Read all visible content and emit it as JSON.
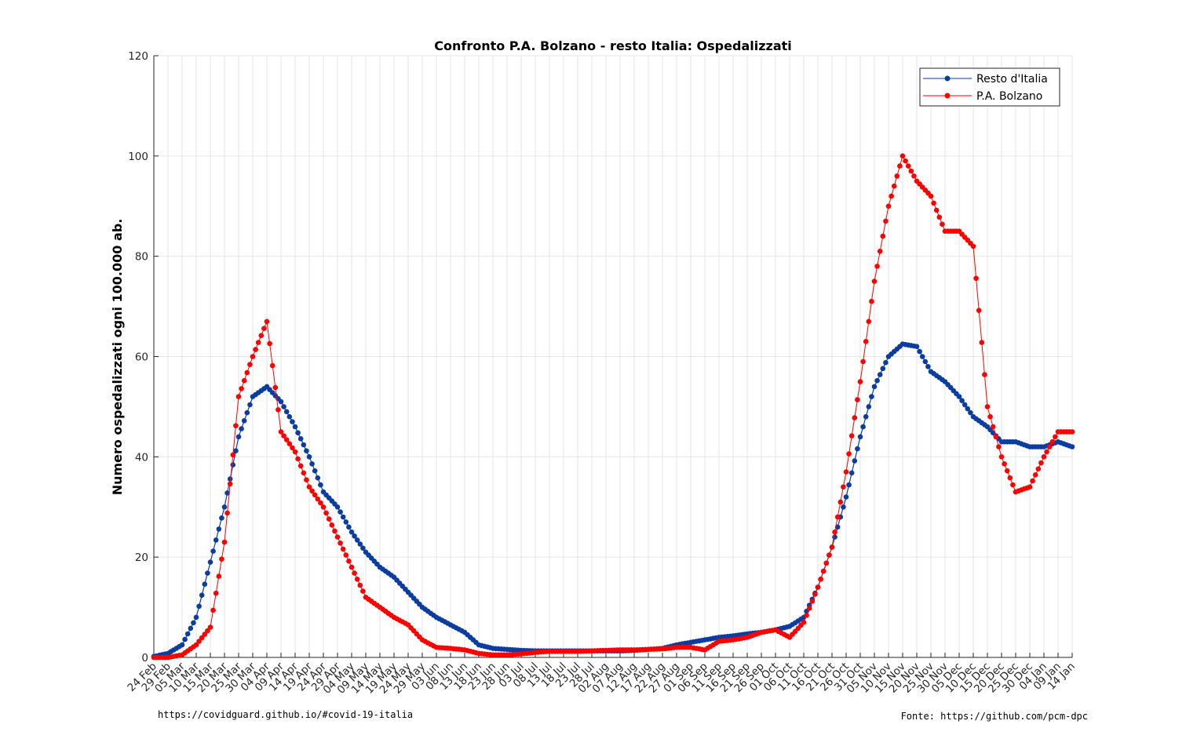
{
  "chart_data": {
    "type": "line",
    "title": "Confronto P.A. Bolzano - resto Italia: Ospedalizzati",
    "xlabel": "",
    "ylabel": "Numero ospedalizzati ogni 100.000 ab.",
    "ylim": [
      0,
      120
    ],
    "yticks": [
      0,
      20,
      40,
      60,
      80,
      100,
      120
    ],
    "xlim": [
      "2020-02-24",
      "2021-01-14"
    ],
    "grid": true,
    "legend_position": "top-right",
    "x": [
      "2020-02-24",
      "2020-02-29",
      "2020-03-05",
      "2020-03-10",
      "2020-03-15",
      "2020-03-20",
      "2020-03-25",
      "2020-03-30",
      "2020-04-04",
      "2020-04-09",
      "2020-04-14",
      "2020-04-19",
      "2020-04-24",
      "2020-04-29",
      "2020-05-04",
      "2020-05-09",
      "2020-05-14",
      "2020-05-19",
      "2020-05-24",
      "2020-05-29",
      "2020-06-03",
      "2020-06-08",
      "2020-06-13",
      "2020-06-18",
      "2020-06-23",
      "2020-06-28",
      "2020-07-03",
      "2020-07-08",
      "2020-07-13",
      "2020-07-18",
      "2020-07-23",
      "2020-07-28",
      "2020-08-02",
      "2020-08-07",
      "2020-08-12",
      "2020-08-17",
      "2020-08-22",
      "2020-08-27",
      "2020-09-01",
      "2020-09-06",
      "2020-09-11",
      "2020-09-16",
      "2020-09-21",
      "2020-09-26",
      "2020-10-01",
      "2020-10-06",
      "2020-10-11",
      "2020-10-16",
      "2020-10-21",
      "2020-10-26",
      "2020-10-31",
      "2020-11-05",
      "2020-11-10",
      "2020-11-15",
      "2020-11-20",
      "2020-11-25",
      "2020-11-30",
      "2020-12-05",
      "2020-12-10",
      "2020-12-15",
      "2020-12-20",
      "2020-12-25",
      "2020-12-30",
      "2021-01-04",
      "2021-01-09",
      "2021-01-14"
    ],
    "xtick_labels": [
      "24 Feb",
      "29 Feb",
      "05 Mar",
      "10 Mar",
      "15 Mar",
      "20 Mar",
      "25 Mar",
      "30 Mar",
      "04 Apr",
      "09 Apr",
      "14 Apr",
      "19 Apr",
      "24 Apr",
      "29 Apr",
      "04 May",
      "09 May",
      "14 May",
      "19 May",
      "24 May",
      "29 May",
      "03 Jun",
      "08 Jun",
      "13 Jun",
      "18 Jun",
      "23 Jun",
      "28 Jun",
      "03 Jul",
      "08 Jul",
      "13 Jul",
      "18 Jul",
      "23 Jul",
      "28 Jul",
      "02 Aug",
      "07 Aug",
      "12 Aug",
      "17 Aug",
      "22 Aug",
      "27 Aug",
      "01 Sep",
      "06 Sep",
      "11 Sep",
      "16 Sep",
      "21 Sep",
      "26 Sep",
      "01 Oct",
      "06 Oct",
      "11 Oct",
      "16 Oct",
      "21 Oct",
      "26 Oct",
      "31 Oct",
      "05 Nov",
      "10 Nov",
      "15 Nov",
      "20 Nov",
      "25 Nov",
      "30 Nov",
      "05 Dec",
      "10 Dec",
      "15 Dec",
      "20 Dec",
      "25 Dec",
      "30 Dec",
      "04 Jan",
      "09 Jan",
      "14 Jan"
    ],
    "series": [
      {
        "name": "Resto d'Italia",
        "color": "#0b3da1",
        "values": [
          0.2,
          0.8,
          2.5,
          8,
          19,
          30,
          44,
          52,
          54,
          51,
          46,
          40,
          33,
          30,
          25,
          21,
          18,
          16,
          13,
          10,
          8,
          6.5,
          5,
          2.5,
          1.8,
          1.6,
          1.4,
          1.3,
          1.3,
          1.3,
          1.3,
          1.3,
          1.3,
          1.3,
          1.4,
          1.6,
          1.8,
          2.5,
          3,
          3.5,
          4,
          4.3,
          4.7,
          5,
          5.5,
          6.2,
          8,
          14,
          22,
          32,
          44,
          54,
          60,
          62.5,
          62,
          57,
          55,
          52,
          48,
          46,
          43,
          43,
          42,
          42,
          43,
          42
        ]
      },
      {
        "name": "P.A. Bolzano",
        "color": "#ff0000",
        "values": [
          0,
          0,
          0.5,
          2.5,
          6,
          23,
          52,
          60,
          67,
          45,
          41,
          34,
          30,
          24,
          18,
          12,
          10,
          8,
          6.5,
          3.5,
          2,
          1.8,
          1.5,
          0.8,
          0.5,
          0.5,
          0.7,
          1,
          1.2,
          1.2,
          1.2,
          1.3,
          1.4,
          1.5,
          1.5,
          1.6,
          1.7,
          2,
          2,
          1.5,
          3.2,
          3.5,
          4,
          5,
          5.5,
          4,
          7,
          14,
          22,
          37,
          55,
          75,
          90,
          100,
          95,
          92,
          85,
          85,
          82,
          50,
          40,
          33,
          34,
          40,
          45,
          45
        ]
      }
    ]
  },
  "footer": {
    "left_note": "https://covidguard.github.io/#covid-19-italia",
    "right_note": "Fonte: https://github.com/pcm-dpc"
  }
}
